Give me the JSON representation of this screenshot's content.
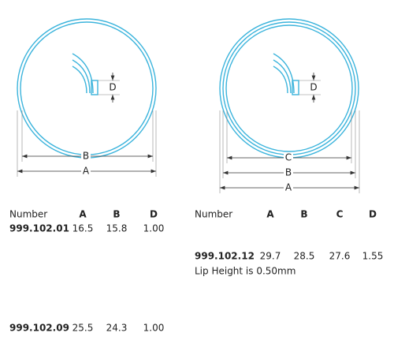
{
  "drawings": [
    {
      "labels": {
        "d": "D",
        "b": "B",
        "a": "A"
      }
    },
    {
      "labels": {
        "d": "D",
        "c": "C",
        "b": "B",
        "a": "A"
      }
    }
  ],
  "tables": [
    {
      "header": [
        "Number",
        "A",
        "B",
        "D"
      ],
      "rows": [
        [
          "999.102.01",
          "16.5",
          "15.8",
          "1.00"
        ],
        [
          "999.102.09",
          "25.5",
          "24.3",
          "1.00"
        ]
      ]
    },
    {
      "header": [
        "Number",
        "A",
        "B",
        "C",
        "D"
      ],
      "rows": [
        [
          "999.102.12",
          "29.7",
          "28.5",
          "27.6",
          "1.55"
        ]
      ],
      "note": "Lip Height is 0.50mm"
    }
  ]
}
